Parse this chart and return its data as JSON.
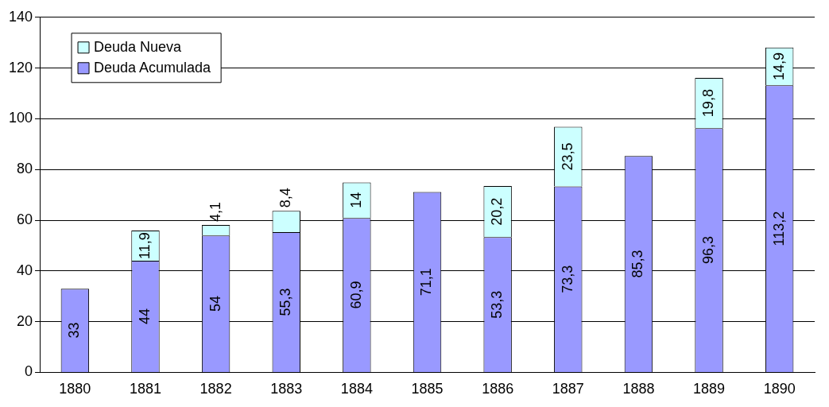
{
  "chart_data": {
    "type": "bar",
    "stacked": true,
    "categories": [
      "1880",
      "1881",
      "1882",
      "1883",
      "1884",
      "1885",
      "1886",
      "1887",
      "1888",
      "1889",
      "1890"
    ],
    "series": [
      {
        "name": "Deuda Acumulada",
        "color": "#9999ff",
        "values": [
          33,
          44,
          54,
          55.3,
          60.9,
          71.1,
          53.3,
          73.3,
          85.3,
          96.3,
          113.2
        ],
        "value_labels": [
          "33",
          "44",
          "54",
          "55,3",
          "60,9",
          "71,1",
          "53,3",
          "73,3",
          "85,3",
          "96,3",
          "113,2"
        ]
      },
      {
        "name": "Deuda Nueva",
        "color": "#ccffff",
        "values": [
          null,
          11.9,
          4.1,
          8.4,
          14,
          null,
          20.2,
          23.5,
          null,
          19.8,
          14.9
        ],
        "value_labels": [
          null,
          "11,9",
          "4,1",
          "8,4",
          "14",
          null,
          "20,2",
          "23,5",
          null,
          "19,8",
          "14,9"
        ]
      }
    ],
    "ylim": [
      0,
      140
    ],
    "yticks": [
      0,
      20,
      40,
      60,
      80,
      100,
      120,
      140
    ],
    "grid": "y",
    "legend": "top left"
  }
}
